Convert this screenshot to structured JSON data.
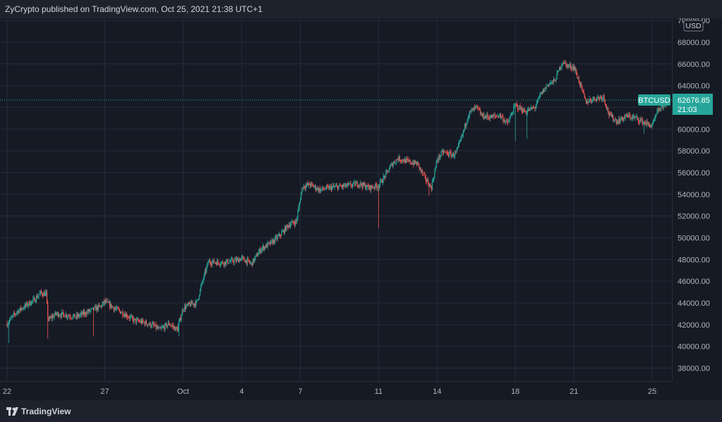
{
  "header": {
    "publisher_text": "ZyCrypto published on TradingView.com, Oct 25, 2021 21:38 UTC+1"
  },
  "footer": {
    "brand": "TradingView",
    "logo_icon": "tradingview-logo-icon"
  },
  "colors": {
    "background": "#161a25",
    "grid": "#262b38",
    "up": "#26a69a",
    "down": "#ef5350",
    "text": "#d1d4dc",
    "badge": "#26a69a"
  },
  "chart_data": {
    "type": "candlestick",
    "symbol": "BTCUSD",
    "currency": "USD",
    "last_price": 62676.85,
    "last_price_text": "62676.85",
    "countdown_text": "21:03",
    "ylim": [
      36800,
      70200
    ],
    "y_ticks": [
      "38000.00",
      "40000.00",
      "42000.00",
      "44000.00",
      "46000.00",
      "48000.00",
      "50000.00",
      "52000.00",
      "54000.00",
      "56000.00",
      "58000.00",
      "60000.00",
      "62000.00",
      "64000.00",
      "66000.00",
      "68000.00",
      "70000.00"
    ],
    "x_ticks": [
      {
        "label": "22",
        "day": 0
      },
      {
        "label": "27",
        "day": 5
      },
      {
        "label": "Oct",
        "day": 9
      },
      {
        "label": "4",
        "day": 12
      },
      {
        "label": "7",
        "day": 15
      },
      {
        "label": "11",
        "day": 19
      },
      {
        "label": "14",
        "day": 22
      },
      {
        "label": "18",
        "day": 26
      },
      {
        "label": "21",
        "day": 29
      },
      {
        "label": "25",
        "day": 33
      }
    ],
    "path": [
      [
        0,
        42100
      ],
      [
        0.5,
        43200
      ],
      [
        1.0,
        43800
      ],
      [
        1.4,
        44300
      ],
      [
        1.7,
        44900
      ],
      [
        2.0,
        44800
      ],
      [
        2.1,
        42400
      ],
      [
        2.5,
        43000
      ],
      [
        3.0,
        42900
      ],
      [
        3.5,
        42700
      ],
      [
        4.3,
        43300
      ],
      [
        4.8,
        43700
      ],
      [
        5.0,
        44100
      ],
      [
        5.5,
        43500
      ],
      [
        6.0,
        43000
      ],
      [
        6.5,
        42400
      ],
      [
        7.0,
        42200
      ],
      [
        7.5,
        41900
      ],
      [
        7.8,
        41500
      ],
      [
        8.3,
        42100
      ],
      [
        8.7,
        41500
      ],
      [
        9.0,
        43500
      ],
      [
        9.4,
        43900
      ],
      [
        9.7,
        44000
      ],
      [
        10.0,
        46000
      ],
      [
        10.3,
        47800
      ],
      [
        11.0,
        47700
      ],
      [
        11.7,
        47900
      ],
      [
        12.0,
        48100
      ],
      [
        12.5,
        47600
      ],
      [
        13.0,
        49000
      ],
      [
        13.5,
        49500
      ],
      [
        14.0,
        50300
      ],
      [
        14.4,
        51200
      ],
      [
        14.8,
        51500
      ],
      [
        15.1,
        54700
      ],
      [
        15.5,
        54900
      ],
      [
        16.0,
        54400
      ],
      [
        16.5,
        54600
      ],
      [
        17.0,
        54700
      ],
      [
        17.5,
        54800
      ],
      [
        18.0,
        55000
      ],
      [
        18.5,
        54600
      ],
      [
        19.0,
        54800
      ],
      [
        19.3,
        55600
      ],
      [
        19.7,
        56800
      ],
      [
        20.0,
        57300
      ],
      [
        20.5,
        57000
      ],
      [
        21.0,
        56800
      ],
      [
        21.3,
        55700
      ],
      [
        21.7,
        54600
      ],
      [
        22.0,
        57200
      ],
      [
        22.3,
        57900
      ],
      [
        22.8,
        57600
      ],
      [
        23.0,
        57900
      ],
      [
        23.3,
        59500
      ],
      [
        23.6,
        61400
      ],
      [
        24.0,
        62000
      ],
      [
        24.3,
        61200
      ],
      [
        24.8,
        61100
      ],
      [
        25.2,
        61300
      ],
      [
        25.6,
        60500
      ],
      [
        26.0,
        62200
      ],
      [
        26.5,
        61600
      ],
      [
        27.0,
        62000
      ],
      [
        27.3,
        63200
      ],
      [
        27.7,
        64200
      ],
      [
        28.0,
        64400
      ],
      [
        28.4,
        66200
      ],
      [
        28.7,
        65800
      ],
      [
        29.0,
        65700
      ],
      [
        29.3,
        64200
      ],
      [
        29.6,
        62500
      ],
      [
        30.0,
        62800
      ],
      [
        30.5,
        63000
      ],
      [
        30.8,
        61300
      ],
      [
        31.2,
        60700
      ],
      [
        31.7,
        61200
      ],
      [
        32.2,
        61000
      ],
      [
        32.7,
        60500
      ],
      [
        33.0,
        60300
      ],
      [
        33.3,
        61700
      ],
      [
        33.6,
        62300
      ],
      [
        33.9,
        62700
      ]
    ]
  }
}
